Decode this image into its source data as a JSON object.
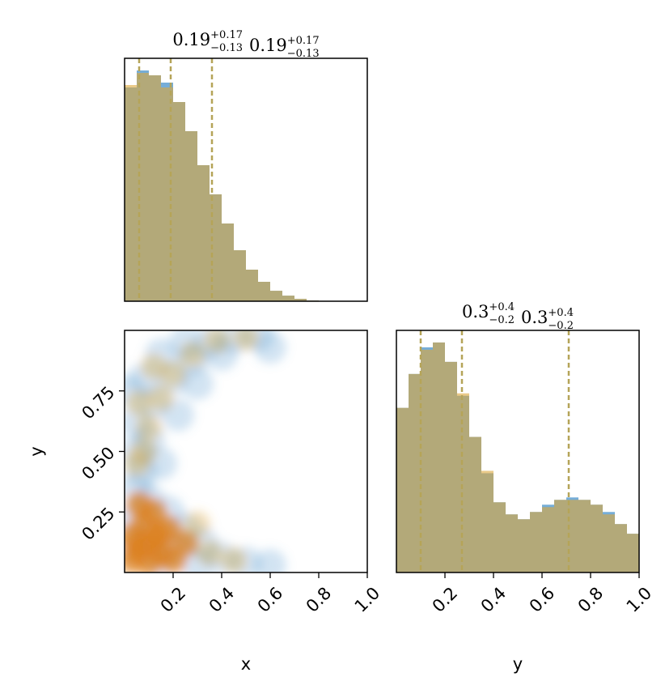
{
  "chart_data": [
    {
      "type": "histogram",
      "titles": [
        {
          "value": "0.19",
          "upper": "+0.17",
          "lower": "−0.13"
        },
        {
          "value": "0.19",
          "upper": "+0.17",
          "lower": "−0.13"
        }
      ],
      "bins": [
        0,
        0.05,
        0.1,
        0.15,
        0.2,
        0.25,
        0.3,
        0.35,
        0.4,
        0.45,
        0.5,
        0.55,
        0.6,
        0.65,
        0.7,
        0.75,
        0.8,
        0.85,
        0.9,
        0.95,
        1
      ],
      "xlim": [
        0,
        1
      ],
      "ylim": [
        0,
        1
      ],
      "quantiles": [
        0.06,
        0.19,
        0.36
      ],
      "series": [
        {
          "color": "#5e9fd0",
          "values": [
            0.88,
            0.95,
            0.93,
            0.9,
            0.82,
            0.7,
            0.56,
            0.44,
            0.32,
            0.21,
            0.13,
            0.08,
            0.043,
            0.023,
            0.01,
            0.003,
            0,
            0,
            0,
            0
          ]
        },
        {
          "color": "#dca63a",
          "values": [
            0.89,
            0.94,
            0.93,
            0.88,
            0.82,
            0.7,
            0.56,
            0.44,
            0.32,
            0.21,
            0.13,
            0.08,
            0.043,
            0.023,
            0.01,
            0.003,
            0,
            0,
            0,
            0
          ]
        }
      ]
    },
    {
      "type": "scatter",
      "xlabel": "x",
      "ylabel": "y",
      "xlim": [
        0,
        1
      ],
      "ylim": [
        0,
        1
      ],
      "xticks": [
        0.2,
        0.4,
        0.6,
        0.8,
        {
          "value": 1,
          "label": "1.0"
        }
      ],
      "yticks": [
        0.25,
        {
          "value": 0.5,
          "label": "0.50"
        },
        0.75
      ],
      "series": [
        {
          "color": "#5e9fd0",
          "x": [
            0.05,
            0.1,
            0.15,
            0.05,
            0.12,
            0.2,
            0.28,
            0.35,
            0.45,
            0.55,
            0.25,
            0.15,
            0.08,
            0.05,
            0.1,
            0.18,
            0.25,
            0.32,
            0.4,
            0.5,
            0.6,
            0.2,
            0.1,
            0.05,
            0.15,
            0.3,
            0.03,
            0.02,
            0.4,
            0.6,
            0.22,
            0.3,
            0.07
          ],
          "values": [
            0.5,
            0.55,
            0.45,
            0.62,
            0.7,
            0.8,
            0.88,
            0.95,
            0.97,
            0.98,
            0.95,
            0.9,
            0.8,
            0.35,
            0.3,
            0.25,
            0.18,
            0.12,
            0.06,
            0.04,
            0.03,
            0.1,
            0.15,
            0.1,
            0.05,
            0.03,
            0.22,
            0.75,
            0.9,
            0.93,
            0.65,
            0.78,
            0.42
          ]
        },
        {
          "color": "#dca63a",
          "x": [
            0.05,
            0.1,
            0.15,
            0.08,
            0.12,
            0.18,
            0.03,
            0.2,
            0.06,
            0.14,
            0.1,
            0.25,
            0.03,
            0.05,
            0.1,
            0.15,
            0.2,
            0.28,
            0.38,
            0.5,
            0.08,
            0.3,
            0.35,
            0.45,
            0.06,
            0.12
          ],
          "values": [
            0.1,
            0.12,
            0.08,
            0.2,
            0.25,
            0.18,
            0.05,
            0.05,
            0.28,
            0.15,
            0.04,
            0.12,
            0.15,
            0.45,
            0.6,
            0.72,
            0.82,
            0.9,
            0.96,
            0.97,
            0.5,
            0.2,
            0.08,
            0.05,
            0.7,
            0.85
          ]
        }
      ]
    },
    {
      "type": "histogram",
      "xlabel": "y",
      "titles": [
        {
          "value": "0.3",
          "upper": "+0.4",
          "lower": "−0.2"
        },
        {
          "value": "0.3",
          "upper": "+0.4",
          "lower": "−0.2"
        }
      ],
      "bins": [
        0,
        0.05,
        0.1,
        0.15,
        0.2,
        0.25,
        0.3,
        0.35,
        0.4,
        0.45,
        0.5,
        0.55,
        0.6,
        0.65,
        0.7,
        0.75,
        0.8,
        0.85,
        0.9,
        0.95,
        1
      ],
      "xlim": [
        0,
        1
      ],
      "ylim": [
        0,
        1
      ],
      "quantiles": [
        0.1,
        0.27,
        0.71
      ],
      "xticks": [
        0.2,
        0.4,
        0.6,
        0.8,
        {
          "value": 1,
          "label": "1.0"
        }
      ],
      "series": [
        {
          "color": "#5e9fd0",
          "values": [
            0.68,
            0.82,
            0.93,
            0.95,
            0.87,
            0.73,
            0.56,
            0.41,
            0.29,
            0.24,
            0.22,
            0.25,
            0.28,
            0.3,
            0.31,
            0.3,
            0.28,
            0.25,
            0.2,
            0.16
          ]
        },
        {
          "color": "#dca63a",
          "values": [
            0.68,
            0.82,
            0.92,
            0.95,
            0.87,
            0.74,
            0.56,
            0.42,
            0.29,
            0.24,
            0.22,
            0.25,
            0.27,
            0.3,
            0.3,
            0.3,
            0.28,
            0.24,
            0.2,
            0.16
          ]
        }
      ]
    }
  ]
}
